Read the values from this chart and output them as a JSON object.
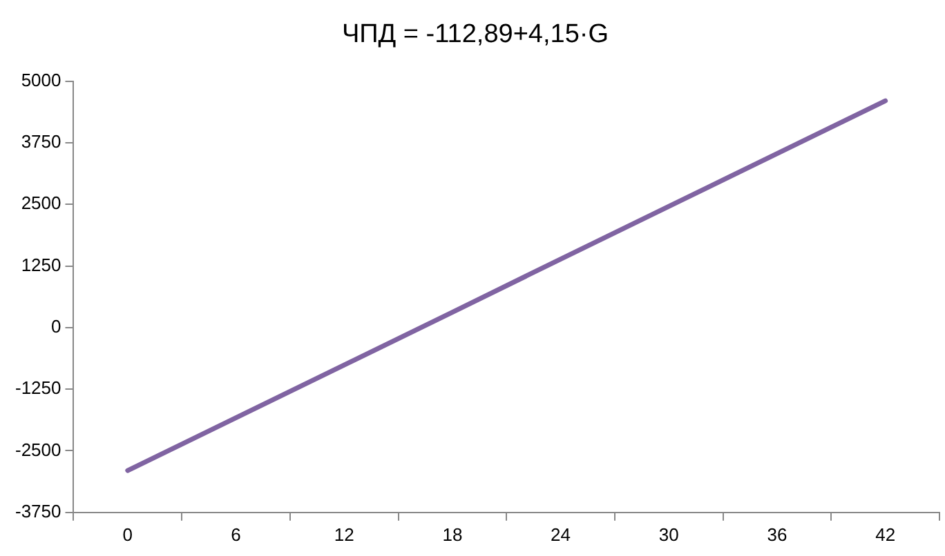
{
  "chart_data": {
    "type": "line",
    "title": "ЧПД = -112,89+4,15·G",
    "categories": [
      "0",
      "6",
      "12",
      "18",
      "24",
      "30",
      "36",
      "42"
    ],
    "series": [
      {
        "color": "#8064a2",
        "values": [
          -2900,
          -1830,
          -760,
          310,
          1390,
          2460,
          3530,
          4600
        ]
      }
    ],
    "ylim": [
      -3750,
      5000
    ],
    "yticks": [
      -3750,
      -2500,
      -1250,
      0,
      1250,
      2500,
      3750,
      5000
    ],
    "grid": false,
    "legend": false,
    "marker": "none",
    "line_style": "solid"
  }
}
